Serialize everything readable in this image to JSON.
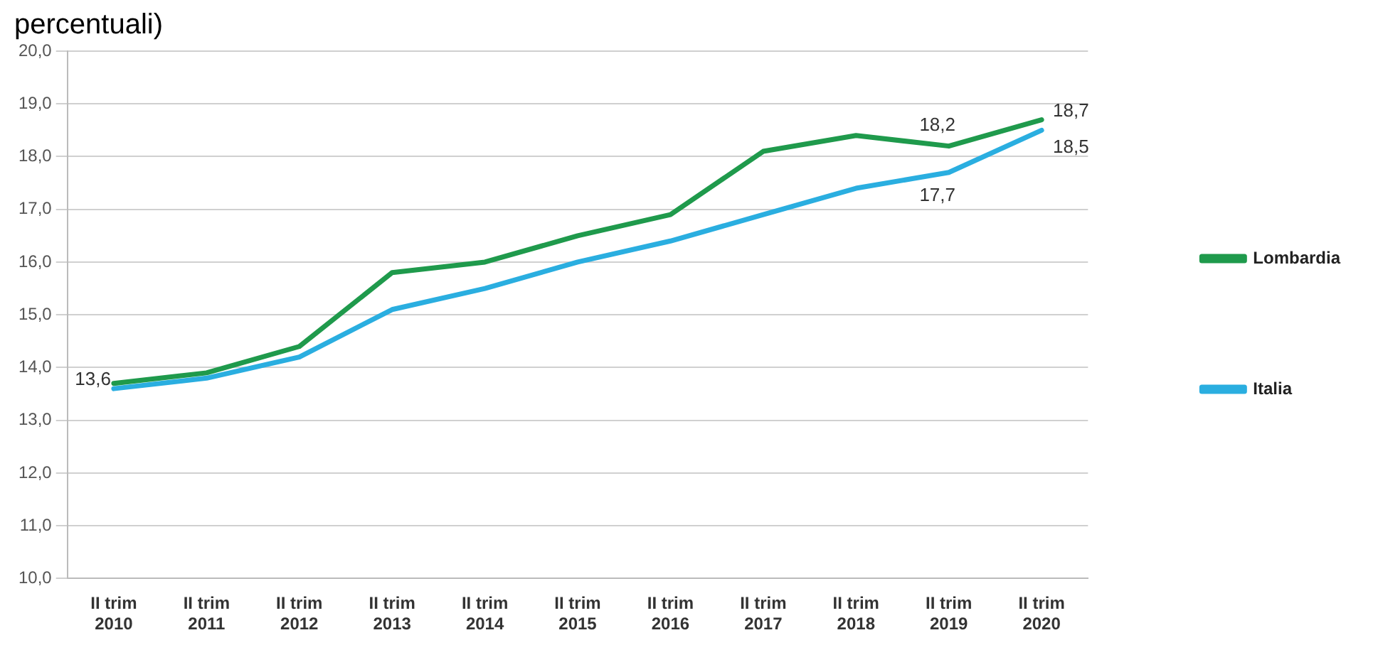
{
  "chart_data": {
    "type": "line",
    "title": "percentuali)",
    "categories": [
      "II trim\n2010",
      "II trim\n2011",
      "II trim\n2012",
      "II trim\n2013",
      "II trim\n2014",
      "II trim\n2015",
      "II trim\n2016",
      "II trim\n2017",
      "II trim\n2018",
      "II trim\n2019",
      "II trim\n2020"
    ],
    "series": [
      {
        "name": "Lombardia",
        "color": "#1f9a4c",
        "values": [
          13.7,
          13.9,
          14.4,
          15.8,
          16.0,
          16.5,
          16.9,
          18.1,
          18.4,
          18.2,
          18.7
        ],
        "value_labels": [
          null,
          null,
          null,
          null,
          null,
          null,
          null,
          null,
          null,
          "18,2",
          "18,7"
        ]
      },
      {
        "name": "Italia",
        "color": "#2aaee0",
        "values": [
          13.6,
          13.8,
          14.2,
          15.1,
          15.5,
          16.0,
          16.4,
          16.9,
          17.4,
          17.7,
          18.5
        ],
        "value_labels": [
          "13,6",
          null,
          null,
          null,
          null,
          null,
          null,
          null,
          null,
          "17,7",
          "18,5"
        ]
      }
    ],
    "ylim": [
      10,
      20
    ],
    "yticks": [
      {
        "value": 10,
        "label": "10,0"
      },
      {
        "value": 11,
        "label": "11,0"
      },
      {
        "value": 12,
        "label": "12,0"
      },
      {
        "value": 13,
        "label": "13,0"
      },
      {
        "value": 14,
        "label": "14,0"
      },
      {
        "value": 15,
        "label": "15,0"
      },
      {
        "value": 16,
        "label": "16,0"
      },
      {
        "value": 17,
        "label": "17,0"
      },
      {
        "value": 18,
        "label": "18,0"
      },
      {
        "value": 19,
        "label": "19,0"
      },
      {
        "value": 20,
        "label": "20,0"
      }
    ],
    "grid": "y",
    "legend": "right",
    "marker": "none",
    "line_style": "solid"
  }
}
